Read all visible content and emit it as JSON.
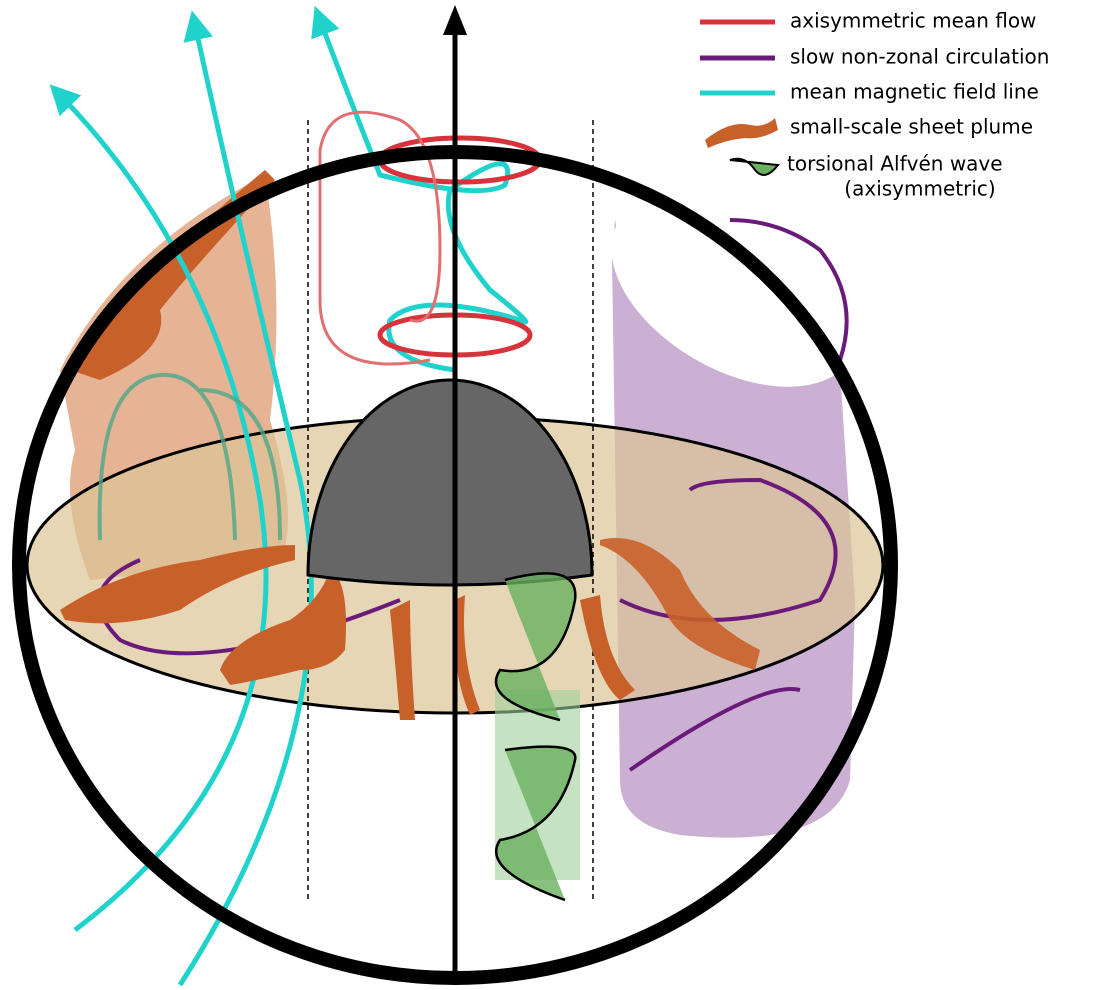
{
  "legend": {
    "items": [
      {
        "label": "axisymmetric mean flow"
      },
      {
        "label": "slow non-zonal circulation"
      },
      {
        "label": "mean magnetic field line"
      },
      {
        "label": "small-scale sheet plume"
      },
      {
        "label": "torsional Alfvén wave",
        "sublabel": "(axisymmetric)"
      }
    ]
  }
}
